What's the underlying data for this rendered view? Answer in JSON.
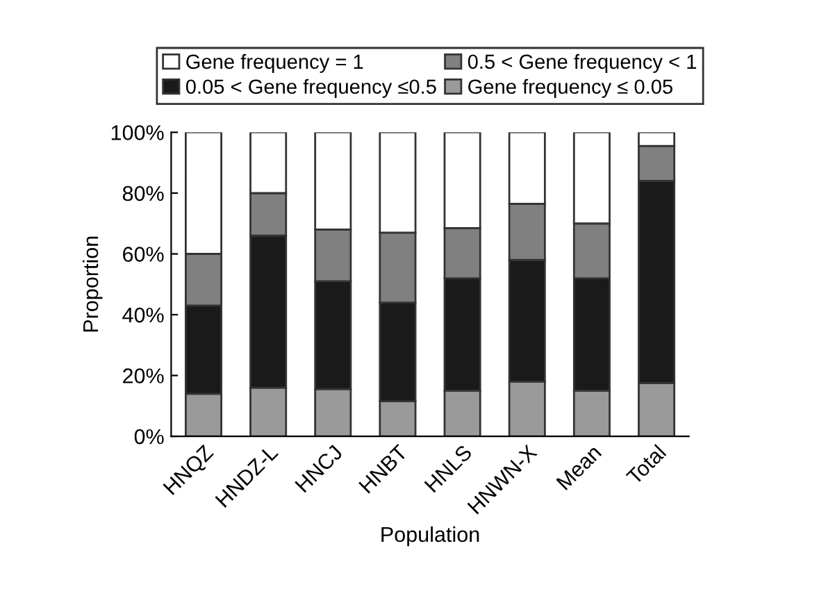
{
  "chart_data": {
    "type": "bar",
    "stacked": true,
    "xlabel": "Population",
    "ylabel": "Proportion",
    "categories": [
      "HNQZ",
      "HNDZ-L",
      "HNCJ",
      "HNBT",
      "HNLS",
      "HNWN-X",
      "Mean",
      "Total"
    ],
    "series": [
      {
        "name": "Gene frequency ≤ 0.05",
        "color": "#9a9a9a",
        "values": [
          14,
          16,
          15.5,
          11.5,
          15,
          18,
          15,
          17.5
        ]
      },
      {
        "name": "0.05 < Gene frequency ≤0.5",
        "color": "#1a1a1a",
        "values": [
          29,
          50,
          35.5,
          32.5,
          37,
          40,
          37,
          66.5
        ]
      },
      {
        "name": "0.5 < Gene frequency < 1",
        "color": "#808080",
        "values": [
          17,
          14,
          17,
          23,
          16.5,
          18.5,
          18,
          11.5
        ]
      },
      {
        "name": "Gene frequency = 1",
        "color": "#ffffff",
        "values": [
          40,
          20,
          32,
          33,
          31.5,
          23.5,
          30,
          4.5
        ]
      }
    ],
    "ylim": [
      0,
      100
    ],
    "yticks": [
      {
        "value": 0,
        "label": "0%"
      },
      {
        "value": 20,
        "label": "20%"
      },
      {
        "value": 40,
        "label": "40%"
      },
      {
        "value": 60,
        "label": "60%"
      },
      {
        "value": 80,
        "label": "80%"
      },
      {
        "value": 100,
        "label": "100%"
      }
    ],
    "grid": false,
    "legend": "top"
  }
}
